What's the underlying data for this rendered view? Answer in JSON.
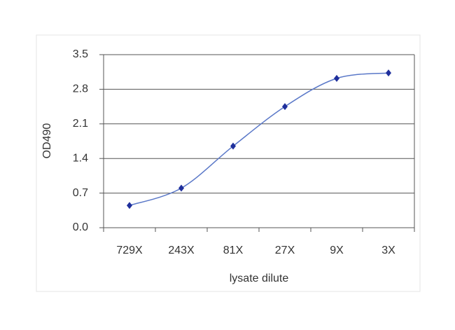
{
  "chart_data": {
    "type": "line",
    "x_label": "lysate dilute",
    "y_label": "OD490",
    "categories": [
      "729X",
      "243X",
      "81X",
      "27X",
      "9X",
      "3X"
    ],
    "series": [
      {
        "color": "#1f2f9c",
        "line_color": "#5a78c8",
        "values": [
          0.45,
          0.8,
          1.65,
          2.45,
          3.02,
          3.13
        ]
      }
    ],
    "ylim": [
      0,
      3.5
    ],
    "yticks": [
      {
        "value": 0,
        "label": "0.0"
      },
      0.7,
      1.4,
      2.1,
      2.8,
      3.5
    ],
    "grid": true,
    "smooth": true
  }
}
